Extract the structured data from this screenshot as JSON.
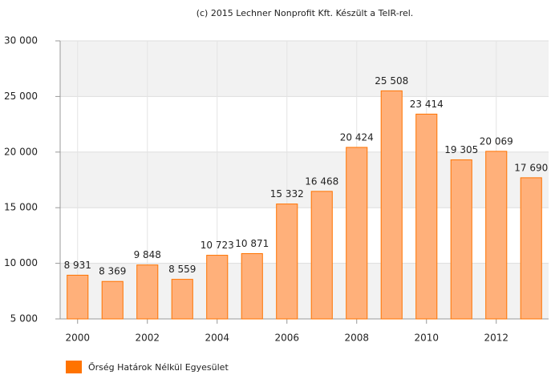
{
  "chart_data": {
    "type": "bar",
    "title": "(c) 2015 Lechner Nonprofit Kft. Készült a TeIR-rel.",
    "categories": [
      "2000",
      null,
      "2002",
      null,
      "2004",
      null,
      "2006",
      null,
      "2008",
      null,
      "2010",
      null,
      "2012",
      null
    ],
    "series": [
      {
        "name": "Őrség Határok Nélkül Egyesület",
        "color": "#ffb07a",
        "stroke": "#ff7300",
        "values": [
          8931,
          8369,
          9848,
          8559,
          10723,
          10871,
          15332,
          16468,
          20424,
          25508,
          23414,
          19305,
          20069,
          17690
        ],
        "value_labels": [
          "8 931",
          "8 369",
          "9 848",
          "8 559",
          "10 723",
          "10 871",
          "15 332",
          "16 468",
          "20 424",
          "25 508",
          "23 414",
          "19 305",
          "20 069",
          "17 690"
        ]
      }
    ],
    "ylim": [
      5000,
      30000
    ],
    "yticks": [
      {
        "value": 5000,
        "label": "5 000"
      },
      {
        "value": 10000,
        "label": "10 000"
      },
      {
        "value": 15000,
        "label": "15 000"
      },
      {
        "value": 20000,
        "label": "20 000"
      },
      {
        "value": 25000,
        "label": "25 000"
      },
      {
        "value": 30000,
        "label": "30 000"
      }
    ],
    "grid": true,
    "legend": "bottom-left"
  }
}
